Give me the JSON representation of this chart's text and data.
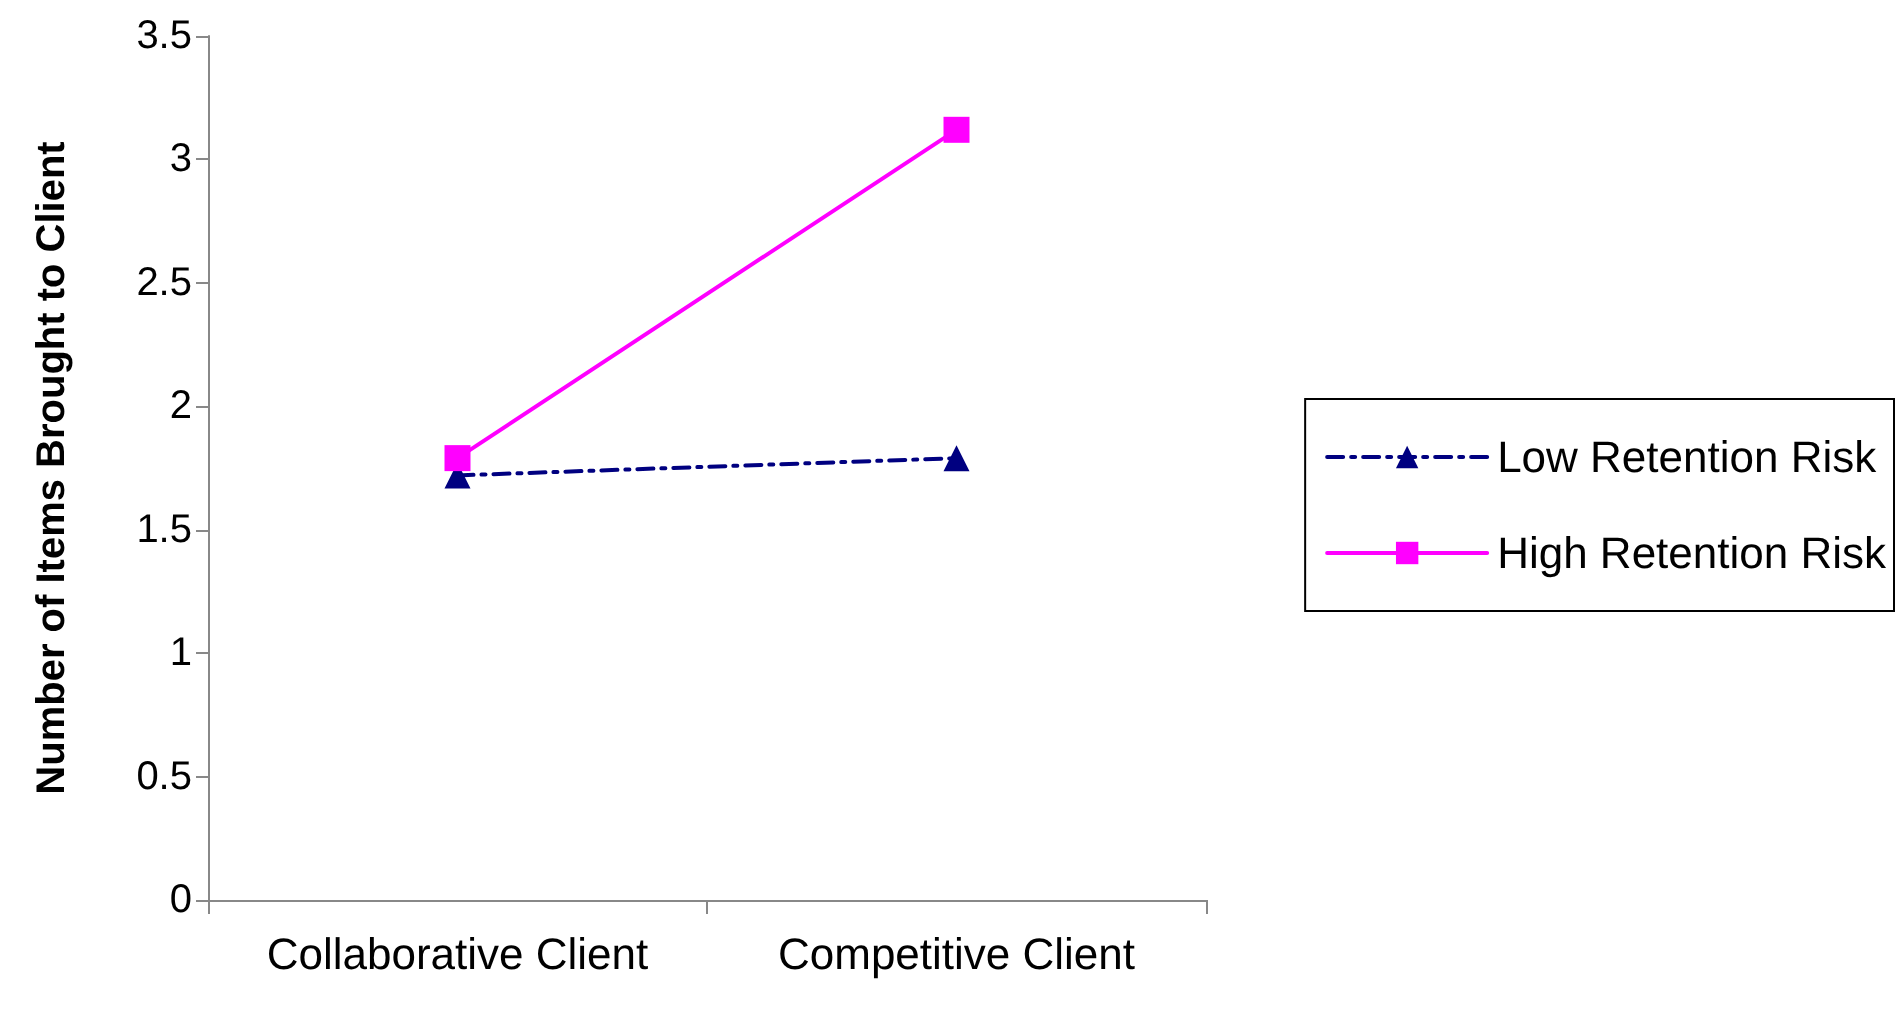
{
  "chart_data": {
    "type": "line",
    "ylabel": "Number of Items Brought to Client",
    "categories": [
      "Collaborative Client",
      "Competitive Client"
    ],
    "series": [
      {
        "name": "Low Retention Risk",
        "color": "#000080",
        "values": [
          1.72,
          1.79
        ],
        "marker": "triangle",
        "line_style": "dashed"
      },
      {
        "name": "High Retention Risk",
        "color": "#ff00ff",
        "values": [
          1.79,
          3.12
        ],
        "marker": "square",
        "line_style": "solid"
      }
    ],
    "ylim": [
      0,
      3.5
    ],
    "yticks": [
      0,
      0.5,
      1,
      1.5,
      2,
      2.5,
      3,
      3.5
    ],
    "grid": false,
    "legend": "right"
  }
}
